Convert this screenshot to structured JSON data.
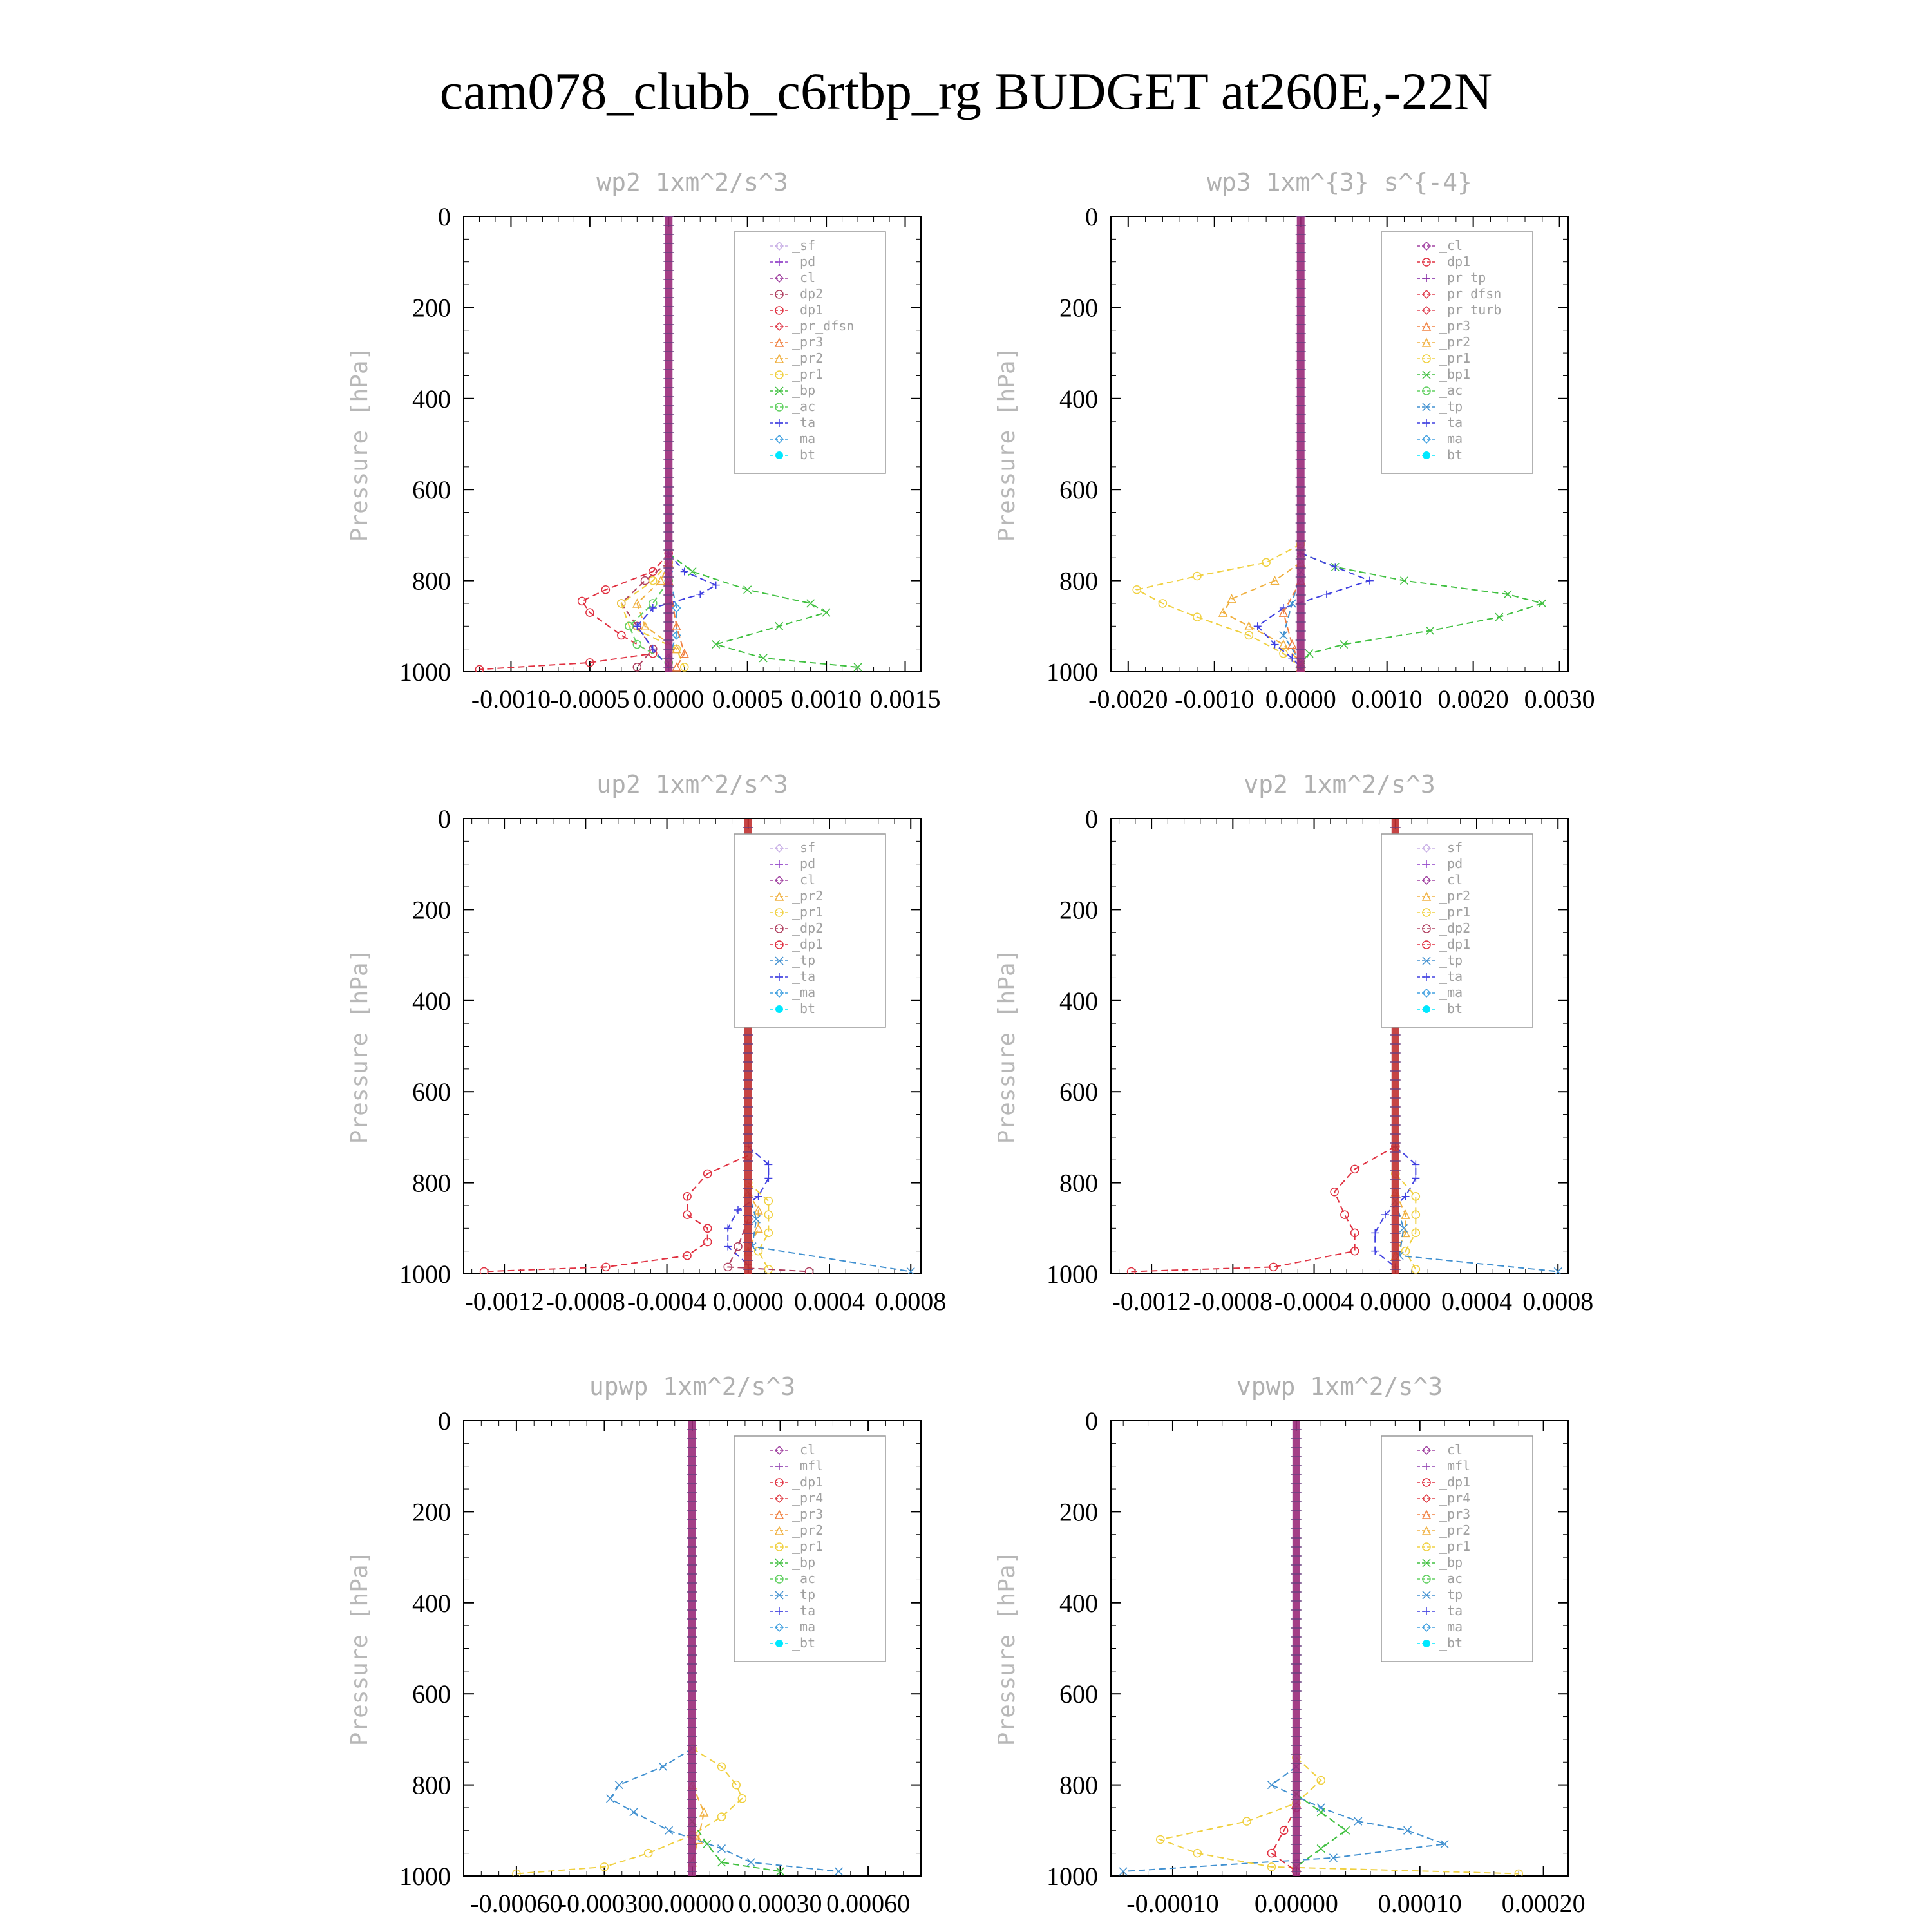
{
  "title": "cam078_clubb_c6rtbp_rg  BUDGET at260E,-22N",
  "colors": {
    "_sf": "#c9b0e6",
    "_pd": "#9040c8",
    "_cl": "#a040a0",
    "_mfl": "#9040b0",
    "_dp2": "#b04060",
    "_dp1": "#e03040",
    "_pr_dfsn": "#e04050",
    "_pr_tp": "#8020a0",
    "_pr_turb": "#e04858",
    "_pr4": "#e04048",
    "_pr3": "#f08040",
    "_pr2": "#f0b040",
    "_pr1": "#f0d040",
    "_bp": "#40c040",
    "_bp1": "#40c040",
    "_ac": "#60d060",
    "_tp": "#4090d0",
    "_ta": "#4040e0",
    "_ma": "#40a0e0",
    "_bt": "#00e8ff"
  },
  "chart_data": [
    {
      "type": "line",
      "title": "wp2   1xm^2/s^3",
      "ylabel": "Pressure [hPa]",
      "ylim": [
        0,
        1000
      ],
      "yticks": [
        "0",
        "200",
        "400",
        "600",
        "800",
        "1000"
      ],
      "xlim": [
        -0.0013,
        0.0016
      ],
      "xticks": [
        -0.001,
        -0.0005,
        0.0,
        0.0005,
        0.001,
        0.0015
      ],
      "xticklabels": [
        "-0.0010",
        "-0.0005",
        "0.0000",
        "0.0005",
        "0.0010",
        "0.0015"
      ],
      "legend": [
        "_sf",
        "_pd",
        "_cl",
        "_dp2",
        "_dp1",
        "_pr_dfsn",
        "_pr3",
        "_pr2",
        "_pr1",
        "_bp",
        "_ac",
        "_ta",
        "_ma",
        "_bt"
      ],
      "series": [
        {
          "name": "_dp1",
          "p": [
            740,
            780,
            820,
            845,
            870,
            920,
            960,
            980,
            995
          ],
          "x": [
            0,
            -0.0001,
            -0.0004,
            -0.00055,
            -0.0005,
            -0.0003,
            -0.0001,
            -0.0005,
            -0.0012
          ]
        },
        {
          "name": "_dp2",
          "p": [
            760,
            800,
            850,
            900,
            950,
            990
          ],
          "x": [
            0,
            -0.00015,
            -0.0003,
            -0.0002,
            -0.0001,
            -0.0002
          ]
        },
        {
          "name": "_pr1",
          "p": [
            760,
            800,
            850,
            900,
            950,
            990
          ],
          "x": [
            0,
            -0.0001,
            -0.0003,
            -0.00025,
            5e-05,
            0.0001
          ]
        },
        {
          "name": "_pr2",
          "p": [
            760,
            800,
            850,
            900,
            950
          ],
          "x": [
            0,
            -5e-05,
            -0.0002,
            -0.00015,
            5e-05
          ]
        },
        {
          "name": "_bp",
          "p": [
            740,
            780,
            820,
            850,
            870,
            900,
            940,
            970,
            990
          ],
          "x": [
            0,
            0.00015,
            0.0005,
            0.0009,
            0.001,
            0.0007,
            0.0003,
            0.0006,
            0.0012
          ]
        },
        {
          "name": "_ac",
          "p": [
            800,
            850,
            900,
            940,
            980
          ],
          "x": [
            0,
            -0.0001,
            -0.00025,
            -0.0002,
            0
          ]
        },
        {
          "name": "_ta",
          "p": [
            740,
            780,
            810,
            830,
            860,
            900,
            950,
            990
          ],
          "x": [
            0,
            0.0001,
            0.0003,
            0.0002,
            -0.0001,
            -0.0002,
            -0.0001,
            0
          ]
        },
        {
          "name": "_ma",
          "p": [
            780,
            860,
            920,
            970
          ],
          "x": [
            0,
            5e-05,
            5e-05,
            0
          ]
        },
        {
          "name": "_pr3",
          "p": [
            800,
            900,
            960,
            990
          ],
          "x": [
            0,
            5e-05,
            0.0001,
            5e-05
          ]
        }
      ]
    },
    {
      "type": "line",
      "title": "wp3   1xm^{3} s^{-4}",
      "ylabel": "Pressure [hPa]",
      "ylim": [
        0,
        1000
      ],
      "yticks": [
        "0",
        "200",
        "400",
        "600",
        "800",
        "1000"
      ],
      "xlim": [
        -0.0022,
        0.0031
      ],
      "xticks": [
        -0.002,
        -0.001,
        0.0,
        0.001,
        0.002,
        0.003
      ],
      "xticklabels": [
        "-0.0020",
        "-0.0010",
        "0.0000",
        "0.0010",
        "0.0020",
        "0.0030"
      ],
      "legend": [
        "_cl",
        "_dp1",
        "_pr_tp",
        "_pr_dfsn",
        "_pr_turb",
        "_pr3",
        "_pr2",
        "_pr1",
        "_bp1",
        "_ac",
        "_tp",
        "_ta",
        "_ma",
        "_bt"
      ],
      "series": [
        {
          "name": "_bp1",
          "p": [
            740,
            770,
            800,
            830,
            850,
            880,
            910,
            940,
            960,
            990
          ],
          "x": [
            0,
            0.0004,
            0.0012,
            0.0024,
            0.0028,
            0.0023,
            0.0015,
            0.0005,
            0.0001,
            0
          ]
        },
        {
          "name": "_pr1",
          "p": [
            720,
            760,
            790,
            820,
            850,
            880,
            920,
            960,
            990
          ],
          "x": [
            0,
            -0.0004,
            -0.0012,
            -0.0019,
            -0.0016,
            -0.0012,
            -0.0006,
            -0.0002,
            0
          ]
        },
        {
          "name": "_pr2",
          "p": [
            760,
            800,
            840,
            870,
            900,
            940,
            980
          ],
          "x": [
            0,
            -0.0003,
            -0.0008,
            -0.0009,
            -0.0006,
            -0.0002,
            0
          ]
        },
        {
          "name": "_ta",
          "p": [
            740,
            770,
            800,
            830,
            860,
            900,
            940,
            970,
            990
          ],
          "x": [
            0,
            0.0004,
            0.0008,
            0.0003,
            -0.0002,
            -0.0005,
            -0.0003,
            -0.0001,
            0
          ]
        },
        {
          "name": "_tp",
          "p": [
            780,
            850,
            920,
            980
          ],
          "x": [
            0,
            -0.0001,
            -0.0002,
            0
          ]
        },
        {
          "name": "_pr3",
          "p": [
            800,
            870,
            940,
            990
          ],
          "x": [
            0,
            -0.0002,
            -0.0001,
            0
          ]
        }
      ]
    },
    {
      "type": "line",
      "title": "up2   1xm^2/s^3",
      "ylabel": "Pressure [hPa]",
      "ylim": [
        0,
        1000
      ],
      "yticks": [
        "0",
        "200",
        "400",
        "600",
        "800",
        "1000"
      ],
      "xlim": [
        -0.0014,
        0.00085
      ],
      "xticks": [
        -0.0012,
        -0.0008,
        -0.0004,
        0.0,
        0.0004,
        0.0008
      ],
      "xticklabels": [
        "-0.0012",
        "-0.0008",
        "-0.0004",
        "0.0000",
        "0.0004",
        "0.0008"
      ],
      "legend": [
        "_sf",
        "_pd",
        "_cl",
        "_pr2",
        "_pr1",
        "_dp2",
        "_dp1",
        "_tp",
        "_ta",
        "_ma",
        "_bt"
      ],
      "series": [
        {
          "name": "_dp1",
          "p": [
            740,
            780,
            830,
            870,
            900,
            930,
            960,
            985,
            995
          ],
          "x": [
            0,
            -0.0002,
            -0.0003,
            -0.0003,
            -0.0002,
            -0.0002,
            -0.0003,
            -0.0007,
            -0.0013
          ]
        },
        {
          "name": "_ta",
          "p": [
            720,
            760,
            790,
            830,
            860,
            900,
            940,
            980
          ],
          "x": [
            0,
            0.0001,
            0.0001,
            5e-05,
            -5e-05,
            -0.0001,
            -0.0001,
            0
          ]
        },
        {
          "name": "_pr1",
          "p": [
            800,
            840,
            870,
            910,
            950,
            990
          ],
          "x": [
            0,
            0.0001,
            0.0001,
            0.0001,
            5e-05,
            0.0001
          ]
        },
        {
          "name": "_pr2",
          "p": [
            820,
            860,
            900,
            950
          ],
          "x": [
            0,
            5e-05,
            5e-05,
            0
          ]
        },
        {
          "name": "_tp",
          "p": [
            820,
            880,
            940,
            995
          ],
          "x": [
            0,
            4e-05,
            2e-05,
            0.0008
          ]
        },
        {
          "name": "_dp2",
          "p": [
            880,
            940,
            985,
            995
          ],
          "x": [
            0,
            -5e-05,
            -0.0001,
            0.0003
          ]
        }
      ]
    },
    {
      "type": "line",
      "title": "vp2   1xm^2/s^3",
      "ylabel": "Pressure [hPa]",
      "ylim": [
        0,
        1000
      ],
      "yticks": [
        "0",
        "200",
        "400",
        "600",
        "800",
        "1000"
      ],
      "xlim": [
        -0.0014,
        0.00085
      ],
      "xticks": [
        -0.0012,
        -0.0008,
        -0.0004,
        0.0,
        0.0004,
        0.0008
      ],
      "xticklabels": [
        "-0.0012",
        "-0.0008",
        "-0.0004",
        "0.0000",
        "0.0004",
        "0.0008"
      ],
      "legend": [
        "_sf",
        "_pd",
        "_cl",
        "_pr2",
        "_pr1",
        "_dp2",
        "_dp1",
        "_tp",
        "_ta",
        "_ma",
        "_bt"
      ],
      "series": [
        {
          "name": "_dp1",
          "p": [
            720,
            770,
            820,
            870,
            910,
            950,
            985,
            995
          ],
          "x": [
            0,
            -0.0002,
            -0.0003,
            -0.00025,
            -0.0002,
            -0.0002,
            -0.0006,
            -0.0013
          ]
        },
        {
          "name": "_ta",
          "p": [
            720,
            760,
            790,
            830,
            870,
            910,
            950,
            985
          ],
          "x": [
            0,
            0.0001,
            0.0001,
            5e-05,
            -5e-05,
            -0.0001,
            -0.0001,
            0
          ]
        },
        {
          "name": "_pr1",
          "p": [
            780,
            830,
            870,
            910,
            950,
            990
          ],
          "x": [
            0,
            0.0001,
            0.0001,
            0.0001,
            5e-05,
            0.0001
          ]
        },
        {
          "name": "_pr2",
          "p": [
            820,
            870,
            910,
            960
          ],
          "x": [
            0,
            5e-05,
            5e-05,
            0
          ]
        },
        {
          "name": "_tp",
          "p": [
            840,
            900,
            960,
            995
          ],
          "x": [
            0,
            4e-05,
            2e-05,
            0.0008
          ]
        }
      ]
    },
    {
      "type": "line",
      "title": "upwp   1xm^2/s^3",
      "ylabel": "Pressure [hPa]",
      "ylim": [
        0,
        1000
      ],
      "yticks": [
        "0",
        "200",
        "400",
        "600",
        "800",
        "1000"
      ],
      "xlim": [
        -0.00078,
        0.00078
      ],
      "xticks": [
        -0.0006,
        -0.0003,
        0.0,
        0.0003,
        0.0006
      ],
      "xticklabels": [
        "-0.00060",
        "-0.00030",
        "0.00000",
        "0.00030",
        "0.00060"
      ],
      "legend": [
        "_cl",
        "_mfl",
        "_dp1",
        "_pr4",
        "_pr3",
        "_pr2",
        "_pr1",
        "_bp",
        "_ac",
        "_tp",
        "_ta",
        "_ma",
        "_bt"
      ],
      "series": [
        {
          "name": "_tp",
          "p": [
            720,
            760,
            800,
            830,
            860,
            900,
            940,
            970,
            990
          ],
          "x": [
            0,
            -0.0001,
            -0.00025,
            -0.00028,
            -0.0002,
            -8e-05,
            0.0001,
            0.0002,
            0.0005
          ]
        },
        {
          "name": "_pr1",
          "p": [
            720,
            760,
            800,
            830,
            870,
            910,
            950,
            980,
            995
          ],
          "x": [
            0,
            0.0001,
            0.00015,
            0.00017,
            0.0001,
            0,
            -0.00015,
            -0.0003,
            -0.0006
          ]
        },
        {
          "name": "_bp",
          "p": [
            880,
            930,
            970,
            990
          ],
          "x": [
            0,
            5e-05,
            0.0001,
            0.0003
          ]
        },
        {
          "name": "_pr2",
          "p": [
            800,
            860,
            920,
            970
          ],
          "x": [
            0,
            4e-05,
            2e-05,
            0
          ]
        }
      ]
    },
    {
      "type": "line",
      "title": "vpwp   1xm^2/s^3",
      "ylabel": "Pressure [hPa]",
      "ylim": [
        0,
        1000
      ],
      "yticks": [
        "0",
        "200",
        "400",
        "600",
        "800",
        "1000"
      ],
      "xlim": [
        -0.00015,
        0.00022
      ],
      "xticks": [
        -0.0001,
        0.0,
        0.0001,
        0.0002
      ],
      "xticklabels": [
        "-0.00010",
        "0.00000",
        "0.00010",
        "0.00020"
      ],
      "legend": [
        "_cl",
        "_mfl",
        "_dp1",
        "_pr4",
        "_pr3",
        "_pr2",
        "_pr1",
        "_bp",
        "_ac",
        "_tp",
        "_ta",
        "_ma",
        "_bt"
      ],
      "series": [
        {
          "name": "_tp",
          "p": [
            760,
            800,
            850,
            880,
            900,
            930,
            960,
            990
          ],
          "x": [
            0,
            -2e-05,
            2e-05,
            5e-05,
            9e-05,
            0.00012,
            3e-05,
            -0.00014
          ]
        },
        {
          "name": "_pr1",
          "p": [
            740,
            790,
            840,
            880,
            920,
            950,
            980,
            995
          ],
          "x": [
            0,
            2e-05,
            0,
            -4e-05,
            -0.00011,
            -8e-05,
            -2e-05,
            0.00018
          ]
        },
        {
          "name": "_bp",
          "p": [
            820,
            860,
            900,
            940,
            980
          ],
          "x": [
            0,
            2e-05,
            4e-05,
            2e-05,
            0
          ]
        },
        {
          "name": "_dp1",
          "p": [
            850,
            900,
            950,
            990
          ],
          "x": [
            0,
            -1e-05,
            -2e-05,
            0
          ]
        }
      ]
    }
  ]
}
